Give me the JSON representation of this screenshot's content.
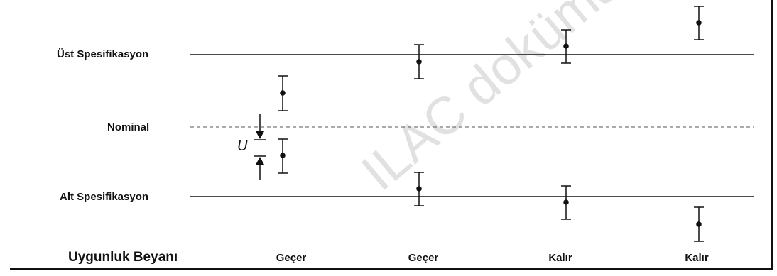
{
  "labels": {
    "upper_spec": "Üst Spesifikasyon",
    "nominal": "Nominal",
    "lower_spec": "Alt Spesifikasyon",
    "uncertainty": "U",
    "decision_title": "Uygunluk Beyanı"
  },
  "decisions": [
    "Geçer",
    "Geçer",
    "Kalır",
    "Kalır"
  ],
  "watermark": "ILAC dokümanıdır",
  "colors": {
    "line": "#111111",
    "dashed": "#555555",
    "watermark": "#c9c9c9"
  }
}
